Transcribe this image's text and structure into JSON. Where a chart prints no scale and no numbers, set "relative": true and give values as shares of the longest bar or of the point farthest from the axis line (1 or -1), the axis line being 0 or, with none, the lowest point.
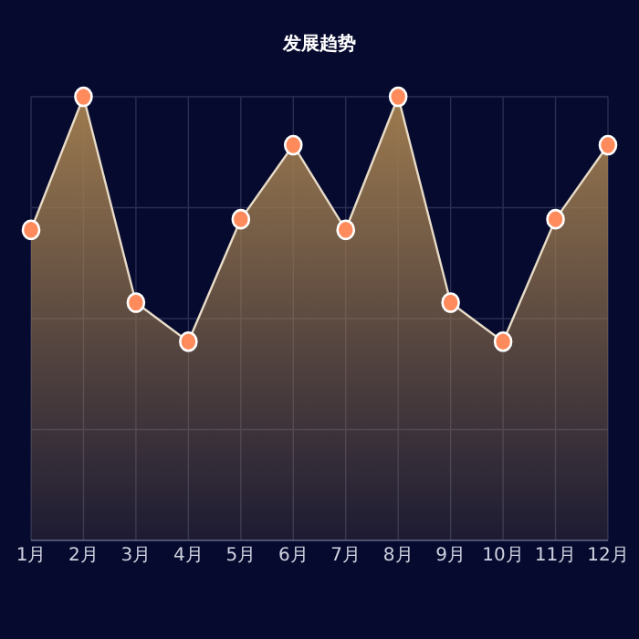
{
  "chart_data": {
    "type": "area",
    "title": "发展趋势",
    "categories": [
      "1月",
      "2月",
      "3月",
      "4月",
      "5月",
      "6月",
      "7月",
      "8月",
      "9月",
      "10月",
      "11月",
      "12月"
    ],
    "relative": true,
    "grid": true,
    "marker": "circle",
    "series": [
      {
        "color": "#9e7b4f",
        "values": [
          0.7,
          1,
          0.536,
          0.448,
          0.724,
          0.891,
          0.7,
          1,
          0.536,
          0.448,
          0.724,
          0.891
        ]
      }
    ]
  }
}
